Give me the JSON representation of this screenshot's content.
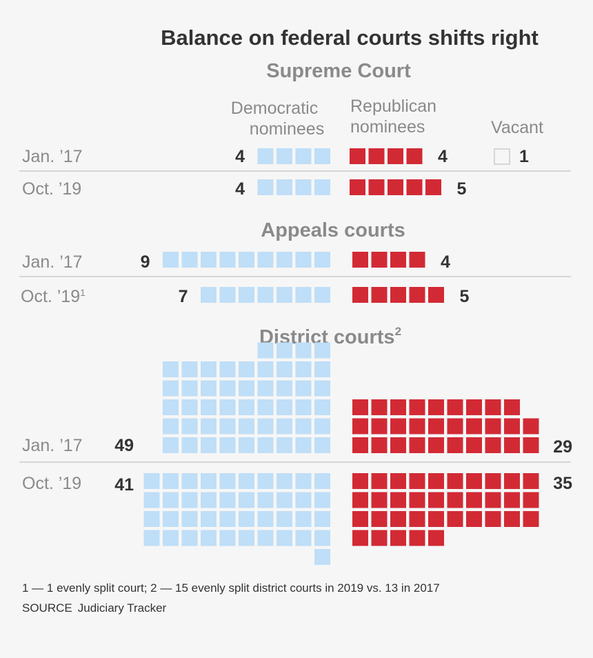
{
  "title": "Balance on federal courts shifts right",
  "colors": {
    "democratic": "#bfdef7",
    "republican": "#d22a35",
    "vacant_border": "#cccccc",
    "divider": "#cccccc",
    "label": "#8a8a8a",
    "value": "#333333",
    "title": "#333333"
  },
  "headers": {
    "democratic_line1": "Democratic",
    "democratic_line2": "nominees",
    "republican_line1": "Republican",
    "republican_line2": "nominees",
    "vacant": "Vacant"
  },
  "chart_data": {
    "type": "waffle",
    "sections": [
      {
        "name": "Supreme Court",
        "name_sup": "",
        "rows": [
          {
            "label": "Jan. ’17",
            "label_sup": "",
            "democratic": 4,
            "republican": 4,
            "vacant": 1
          },
          {
            "label": "Oct. ’19",
            "label_sup": "",
            "democratic": 4,
            "republican": 5
          }
        ]
      },
      {
        "name": "Appeals courts",
        "name_sup": "",
        "rows": [
          {
            "label": "Jan. ’17",
            "label_sup": "",
            "democratic": 9,
            "republican": 4
          },
          {
            "label": "Oct. ’19",
            "label_sup": "1",
            "democratic": 7,
            "republican": 5
          }
        ]
      },
      {
        "name": "District courts",
        "name_sup": "2",
        "rows": [
          {
            "label": "Jan. ’17",
            "label_sup": "",
            "democratic": 49,
            "republican": 29
          },
          {
            "label": "Oct. ’19",
            "label_sup": "",
            "democratic": 41,
            "republican": 35
          }
        ]
      }
    ]
  },
  "footnote": "1 — 1 evenly split court; 2 — 15 evenly split district courts in 2019 vs. 13 in 2017",
  "source_label": "SOURCE",
  "source_text": "Judiciary Tracker"
}
